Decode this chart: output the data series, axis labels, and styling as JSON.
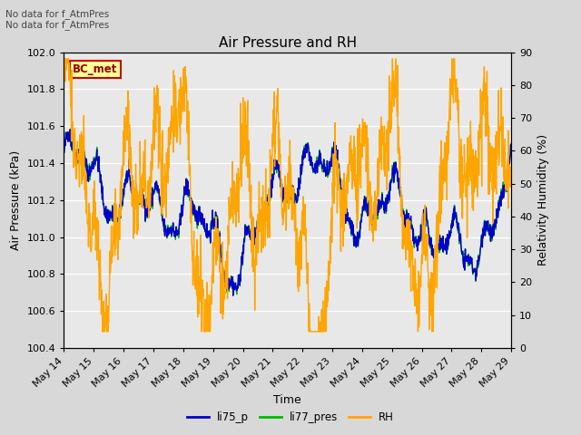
{
  "title": "Air Pressure and RH",
  "xlabel": "Time",
  "ylabel_left": "Air Pressure (kPa)",
  "ylabel_right": "Relativity Humidity (%)",
  "ylim_left": [
    100.4,
    102.0
  ],
  "ylim_right": [
    0,
    90
  ],
  "yticks_left": [
    100.4,
    100.6,
    100.8,
    101.0,
    101.2,
    101.4,
    101.6,
    101.8,
    102.0
  ],
  "yticks_right": [
    0,
    10,
    20,
    30,
    40,
    50,
    60,
    70,
    80,
    90
  ],
  "xtick_labels": [
    "May 14",
    "May 15",
    "May 16",
    "May 17",
    "May 18",
    "May 19",
    "May 20",
    "May 21",
    "May 22",
    "May 23",
    "May 24",
    "May 25",
    "May 26",
    "May 27",
    "May 28",
    "May 29"
  ],
  "annotation_text": "No data for f_AtmPres\nNo data for f_AtmPres",
  "legend_box_label": "BC_met",
  "legend_box_color": "#ffff99",
  "legend_box_border": "#cc0000",
  "color_li75": "#0000cc",
  "color_li77": "#00bb00",
  "color_rh": "#ffa500",
  "line_width": 1.0,
  "bg_color": "#d8d8d8",
  "plot_bg_color": "#e8e8e8"
}
